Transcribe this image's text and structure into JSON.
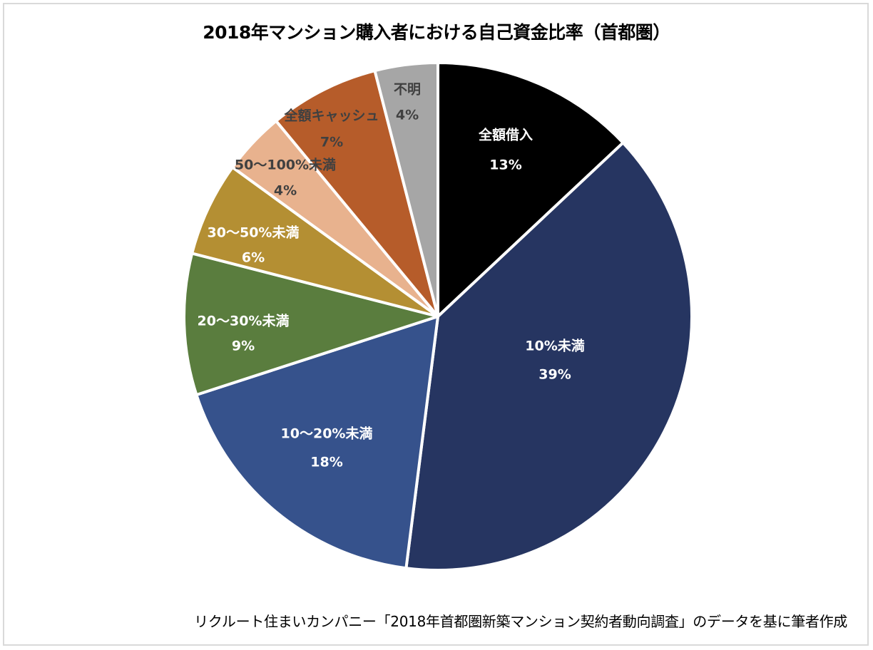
{
  "chart_data": {
    "type": "pie",
    "title": "2018年マンション購入者における自己資金比率（首都圏）",
    "source": "リクルート住まいカンパニー「2018年首都圏新築マンション契約者動向調査」のデータを基に筆者作成",
    "start_angle_deg": 0,
    "direction": "clockwise",
    "slices": [
      {
        "label": "全額借入",
        "value": 13,
        "value_label": "13%",
        "color": "#000000",
        "text_color": "#ffffff"
      },
      {
        "label": "10%未満",
        "value": 39,
        "value_label": "39%",
        "color": "#263561",
        "text_color": "#ffffff"
      },
      {
        "label": "10〜20%未満",
        "value": 18,
        "value_label": "18%",
        "color": "#36528c",
        "text_color": "#ffffff"
      },
      {
        "label": "20〜30%未満",
        "value": 9,
        "value_label": "9%",
        "color": "#5a7d3e",
        "text_color": "#ffffff"
      },
      {
        "label": "30〜50%未満",
        "value": 6,
        "value_label": "6%",
        "color": "#b48f33",
        "text_color": "#ffffff"
      },
      {
        "label": "50〜100%未満",
        "value": 4,
        "value_label": "4%",
        "color": "#e8b28e",
        "text_color": "#404040"
      },
      {
        "label": "全額キャッシュ",
        "value": 7,
        "value_label": "7%",
        "color": "#b65c2a",
        "text_color": "#404040"
      },
      {
        "label": "不明",
        "value": 4,
        "value_label": "4%",
        "color": "#a6a6a6",
        "text_color": "#404040"
      }
    ]
  }
}
